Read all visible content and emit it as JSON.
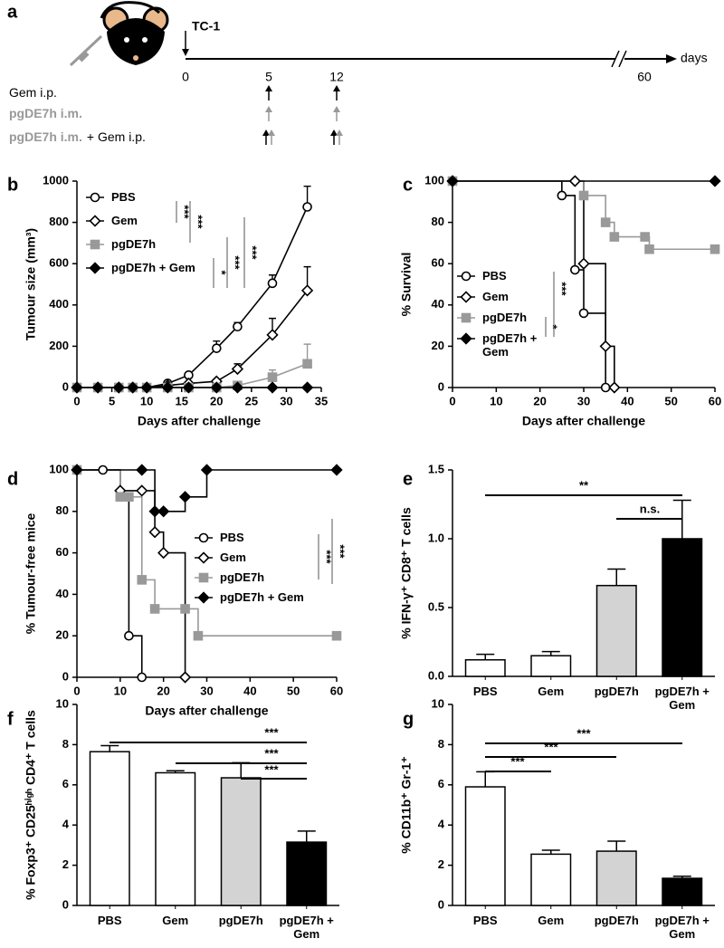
{
  "panel_a": {
    "label": "a",
    "event": "TC-1",
    "days": [
      0,
      5,
      12,
      60
    ],
    "unit": "days",
    "rows": [
      [
        "Gem i.p."
      ],
      [
        "pgDE7h i.m."
      ],
      [
        "pgDE7h i.m.",
        "+ Gem i.p."
      ]
    ]
  },
  "chart_data": [
    {
      "type": "line",
      "label": "b",
      "xlabel": "Days after challenge",
      "ylabel": "Tumour size (mm³)",
      "xlim": [
        0,
        35
      ],
      "xticks": [
        0,
        5,
        10,
        15,
        20,
        25,
        30,
        35
      ],
      "ylim": [
        0,
        1000
      ],
      "yticks": [
        0,
        200,
        400,
        600,
        800,
        1000
      ],
      "x": [
        0,
        3,
        6,
        8,
        10,
        13,
        16,
        20,
        23,
        28,
        33
      ],
      "series": [
        {
          "name": "PBS",
          "color": "#000000",
          "marker": "circle",
          "filled": false,
          "values": [
            0,
            0,
            0,
            0,
            0,
            20,
            60,
            190,
            295,
            505,
            875
          ],
          "errors": [
            null,
            null,
            null,
            null,
            null,
            null,
            null,
            35,
            20,
            40,
            100
          ]
        },
        {
          "name": "Gem",
          "color": "#000000",
          "marker": "diamond",
          "filled": false,
          "values": [
            0,
            0,
            0,
            0,
            0,
            10,
            20,
            30,
            90,
            255,
            470
          ],
          "errors": [
            null,
            null,
            null,
            null,
            null,
            null,
            null,
            null,
            25,
            80,
            115
          ]
        },
        {
          "name": "pgDE7h",
          "color": "#999999",
          "marker": "square",
          "filled": true,
          "values": [
            0,
            0,
            0,
            0,
            0,
            0,
            0,
            0,
            10,
            50,
            115
          ],
          "errors": [
            null,
            null,
            null,
            null,
            null,
            null,
            null,
            null,
            null,
            35,
            95
          ]
        },
        {
          "name": "pgDE7h + Gem",
          "color": "#000000",
          "marker": "diamond",
          "filled": true,
          "values": [
            0,
            0,
            0,
            0,
            0,
            0,
            0,
            0,
            0,
            0,
            0
          ],
          "errors": [
            null,
            null,
            null,
            null,
            null,
            null,
            null,
            null,
            null,
            null,
            null
          ]
        }
      ],
      "annotations": [
        "***",
        "***",
        "*",
        "***",
        "***"
      ]
    },
    {
      "type": "step",
      "label": "c",
      "xlabel": "Days after challenge",
      "ylabel": "% Survival",
      "xlim": [
        0,
        60
      ],
      "xticks": [
        0,
        10,
        20,
        30,
        40,
        50,
        60
      ],
      "ylim": [
        0,
        100
      ],
      "yticks": [
        0,
        20,
        40,
        60,
        80,
        100
      ],
      "series": [
        {
          "name": "PBS",
          "color": "#000000",
          "marker": "circle",
          "filled": false,
          "x": [
            0,
            25,
            28,
            30,
            35
          ],
          "values": [
            100,
            93,
            57,
            36,
            0
          ]
        },
        {
          "name": "Gem",
          "color": "#000000",
          "marker": "diamond",
          "filled": false,
          "x": [
            0,
            28,
            30,
            35,
            37
          ],
          "values": [
            100,
            100,
            60,
            20,
            0
          ]
        },
        {
          "name": "pgDE7h",
          "color": "#999999",
          "marker": "square",
          "filled": true,
          "x": [
            0,
            30,
            35,
            37,
            44,
            45,
            60
          ],
          "values": [
            100,
            93,
            80,
            73,
            73,
            67,
            67
          ]
        },
        {
          "name": "pgDE7h + Gem",
          "color": "#000000",
          "marker": "diamond",
          "filled": true,
          "x": [
            0,
            60
          ],
          "values": [
            100,
            100
          ]
        }
      ],
      "annotations": [
        "*",
        "***"
      ]
    },
    {
      "type": "step",
      "label": "d",
      "xlabel": "Days after challenge",
      "ylabel": "% Tumour-free mice",
      "xlim": [
        0,
        60
      ],
      "xticks": [
        0,
        10,
        20,
        30,
        40,
        50,
        60
      ],
      "ylim": [
        0,
        100
      ],
      "yticks": [
        0,
        20,
        40,
        60,
        80,
        100
      ],
      "series": [
        {
          "name": "PBS",
          "color": "#000000",
          "marker": "circle",
          "filled": false,
          "x": [
            0,
            6,
            10,
            12,
            15
          ],
          "values": [
            100,
            100,
            87,
            20,
            0
          ]
        },
        {
          "name": "Gem",
          "color": "#000000",
          "marker": "diamond",
          "filled": false,
          "x": [
            0,
            10,
            15,
            18,
            20,
            25
          ],
          "values": [
            100,
            90,
            90,
            70,
            60,
            0
          ]
        },
        {
          "name": "pgDE7h",
          "color": "#999999",
          "marker": "square",
          "filled": true,
          "x": [
            0,
            10,
            12,
            15,
            18,
            25,
            28,
            60
          ],
          "values": [
            100,
            87,
            87,
            47,
            33,
            33,
            20,
            20
          ]
        },
        {
          "name": "pgDE7h + Gem",
          "color": "#000000",
          "marker": "diamond",
          "filled": true,
          "x": [
            0,
            15,
            18,
            20,
            25,
            30,
            60
          ],
          "values": [
            100,
            100,
            80,
            80,
            87,
            100,
            100
          ]
        }
      ],
      "annotations": [
        "***",
        "***"
      ]
    },
    {
      "type": "bar",
      "label": "e",
      "ylabel": "% IFN-γ⁺ CD8⁺ T cells",
      "categories": [
        "PBS",
        "Gem",
        "pgDE7h",
        "pgDE7h + Gem"
      ],
      "values": [
        0.12,
        0.15,
        0.66,
        1.0
      ],
      "errors": [
        0.04,
        0.03,
        0.12,
        0.28
      ],
      "colors": [
        "#ffffff",
        "#ffffff",
        "#d3d3d3",
        "#000000"
      ],
      "ylim": [
        0,
        1.5
      ],
      "yticks": [
        {
          "value": 0,
          "label": "0.0"
        },
        0.5,
        {
          "value": 1,
          "label": "1.0"
        },
        1.5
      ],
      "annotations": [
        "**",
        "n.s."
      ]
    },
    {
      "type": "bar",
      "label": "f",
      "ylabel": "% Foxp3⁺ CD25ʰⁱᵍʰ CD4⁺ T cells",
      "categories": [
        "PBS",
        "Gem",
        "pgDE7h",
        "pgDE7h + Gem"
      ],
      "values": [
        7.65,
        6.6,
        6.35,
        3.15
      ],
      "errors": [
        0.3,
        0.1,
        0.75,
        0.55
      ],
      "colors": [
        "#ffffff",
        "#ffffff",
        "#d3d3d3",
        "#000000"
      ],
      "ylim": [
        0,
        10
      ],
      "yticks": [
        0,
        2,
        4,
        6,
        8,
        10
      ],
      "annotations": [
        "***",
        "***",
        "***"
      ]
    },
    {
      "type": "bar",
      "label": "g",
      "ylabel": "% CD11b⁺ Gr-1⁺",
      "categories": [
        "PBS",
        "Gem",
        "pgDE7h",
        "pgDE7h + Gem"
      ],
      "values": [
        5.9,
        2.55,
        2.7,
        1.35
      ],
      "errors": [
        0.75,
        0.2,
        0.5,
        0.1
      ],
      "colors": [
        "#ffffff",
        "#ffffff",
        "#d3d3d3",
        "#000000"
      ],
      "ylim": [
        0,
        10
      ],
      "yticks": [
        0,
        2,
        4,
        6,
        8,
        10
      ],
      "annotations": [
        "***",
        "***",
        "***"
      ]
    }
  ]
}
